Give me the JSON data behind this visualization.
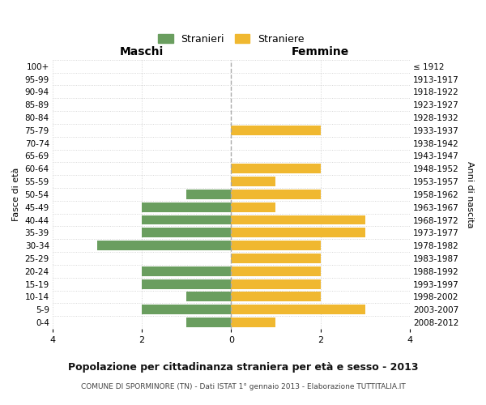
{
  "age_groups": [
    "100+",
    "95-99",
    "90-94",
    "85-89",
    "80-84",
    "75-79",
    "70-74",
    "65-69",
    "60-64",
    "55-59",
    "50-54",
    "45-49",
    "40-44",
    "35-39",
    "30-34",
    "25-29",
    "20-24",
    "15-19",
    "10-14",
    "5-9",
    "0-4"
  ],
  "birth_years": [
    "≤ 1912",
    "1913-1917",
    "1918-1922",
    "1923-1927",
    "1928-1932",
    "1933-1937",
    "1938-1942",
    "1943-1947",
    "1948-1952",
    "1953-1957",
    "1958-1962",
    "1963-1967",
    "1968-1972",
    "1973-1977",
    "1978-1982",
    "1983-1987",
    "1988-1992",
    "1993-1997",
    "1998-2002",
    "2003-2007",
    "2008-2012"
  ],
  "maschi": [
    0,
    0,
    0,
    0,
    0,
    0,
    0,
    0,
    0,
    0,
    1,
    2,
    2,
    2,
    3,
    0,
    2,
    2,
    1,
    2,
    1
  ],
  "femmine": [
    0,
    0,
    0,
    0,
    0,
    2,
    0,
    0,
    2,
    1,
    2,
    1,
    3,
    3,
    2,
    2,
    2,
    2,
    2,
    3,
    1
  ],
  "maschi_color": "#6a9e5f",
  "femmine_color": "#f0b830",
  "title": "Popolazione per cittadinanza straniera per età e sesso - 2013",
  "subtitle": "COMUNE DI SPORMINORE (TN) - Dati ISTAT 1° gennaio 2013 - Elaborazione TUTTITALIA.IT",
  "legend_maschi": "Stranieri",
  "legend_femmine": "Straniere",
  "xlabel_left": "Maschi",
  "xlabel_right": "Femmine",
  "ylabel_left": "Fasce di età",
  "ylabel_right": "Anni di nascita",
  "xlim": 4,
  "bar_height": 0.75,
  "background_color": "#ffffff",
  "grid_color": "#cccccc",
  "center_line_color": "#aaaaaa"
}
